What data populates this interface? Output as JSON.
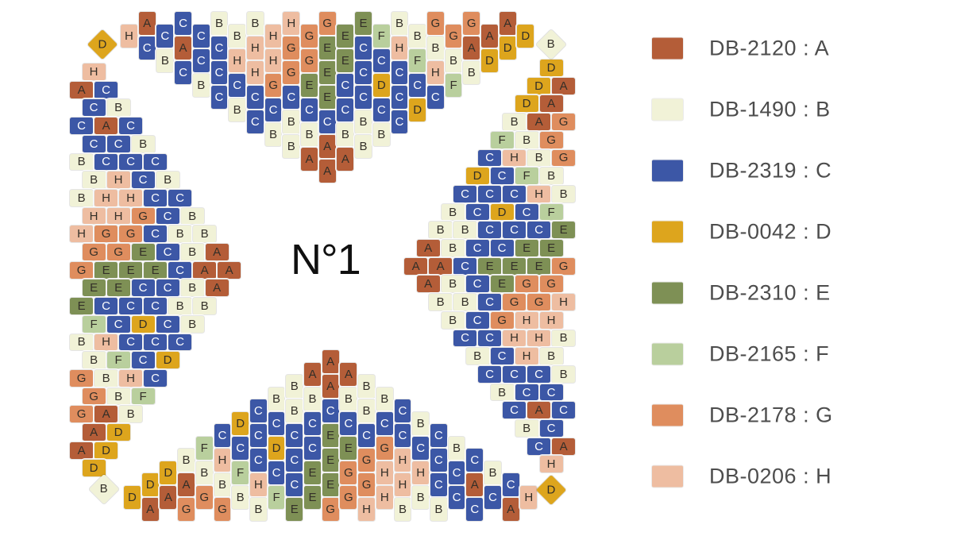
{
  "title_label": "N°1",
  "legend": {
    "items": [
      {
        "code": "DB-2120",
        "letter": "A",
        "label": "DB-2120 : A",
        "color": "#b45d38"
      },
      {
        "code": "DB-1490",
        "letter": "B",
        "label": "DB-1490 : B",
        "color": "#f1f2d7"
      },
      {
        "code": "DB-2319",
        "letter": "C",
        "label": "DB-2319 : C",
        "color": "#3c57a6"
      },
      {
        "code": "DB-0042",
        "letter": "D",
        "label": "DB-0042 : D",
        "color": "#dda51d"
      },
      {
        "code": "DB-2310",
        "letter": "E",
        "label": "DB-2310 : E",
        "color": "#7e9055"
      },
      {
        "code": "DB-2165",
        "letter": "F",
        "label": "DB-2165 : F",
        "color": "#b9cf9d"
      },
      {
        "code": "DB-2178",
        "letter": "G",
        "label": "DB-2178 : G",
        "color": "#df8d5e"
      },
      {
        "code": "DB-0206",
        "letter": "H",
        "label": "DB-0206 : H",
        "color": "#eebda1"
      }
    ]
  },
  "pattern": {
    "motif_columns": [
      "H",
      "AC",
      "CB",
      "CAC",
      "CCB",
      "BCCC",
      "BHCB",
      "BHHCC",
      "HHGCB",
      "HGGCBB",
      "GGECBA",
      "GEEECAA",
      "EECCBA",
      "ECCCBB",
      "FCDCB",
      "BHCCC",
      "BFCD",
      "GBHC",
      "GBF",
      "GAB",
      "AD",
      "AD",
      "D"
    ],
    "corner_beads": [
      {
        "position": "top-left",
        "letter": "D"
      },
      {
        "position": "top-right",
        "letter": "B"
      },
      {
        "position": "bottom-left",
        "letter": "B"
      },
      {
        "position": "bottom-right",
        "letter": "D"
      }
    ]
  }
}
